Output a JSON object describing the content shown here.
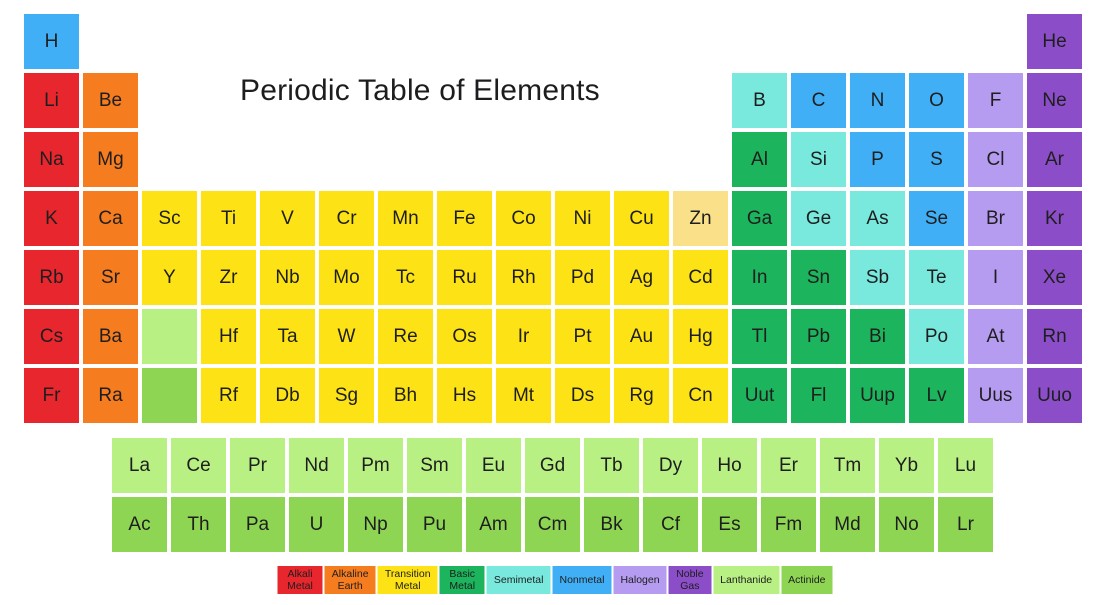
{
  "title": "Periodic Table of Elements",
  "categories": {
    "alkali": {
      "label": "Alkali Metal",
      "color": "#e8262d"
    },
    "alkaline": {
      "label": "Alkaline Earth",
      "color": "#f67c20"
    },
    "transition": {
      "label": "Transition Metal",
      "color": "#fde315"
    },
    "basic": {
      "label": "Basic Metal",
      "color": "#1cb45c"
    },
    "semimetal": {
      "label": "Semimetal",
      "color": "#79e9dd"
    },
    "nonmetal": {
      "label": "Nonmetal",
      "color": "#41aff5"
    },
    "halogen": {
      "label": "Halogen",
      "color": "#b59cf0"
    },
    "noble": {
      "label": "Noble Gas",
      "color": "#8b4ec8"
    },
    "lanthanide": {
      "label": "Lanthanide",
      "color": "#b9f083"
    },
    "actinide": {
      "label": "Actinide",
      "color": "#8ed554"
    }
  },
  "legend_order": [
    "alkali",
    "alkaline",
    "transition",
    "basic",
    "semimetal",
    "nonmetal",
    "halogen",
    "noble",
    "lanthanide",
    "actinide"
  ],
  "main_table": [
    {
      "symbol": "H",
      "row": 1,
      "col": 1,
      "cat": "nonmetal"
    },
    {
      "symbol": "He",
      "row": 1,
      "col": 18,
      "cat": "noble"
    },
    {
      "symbol": "Li",
      "row": 2,
      "col": 1,
      "cat": "alkali"
    },
    {
      "symbol": "Be",
      "row": 2,
      "col": 2,
      "cat": "alkaline"
    },
    {
      "symbol": "B",
      "row": 2,
      "col": 13,
      "cat": "semimetal"
    },
    {
      "symbol": "C",
      "row": 2,
      "col": 14,
      "cat": "nonmetal"
    },
    {
      "symbol": "N",
      "row": 2,
      "col": 15,
      "cat": "nonmetal"
    },
    {
      "symbol": "O",
      "row": 2,
      "col": 16,
      "cat": "nonmetal"
    },
    {
      "symbol": "F",
      "row": 2,
      "col": 17,
      "cat": "halogen"
    },
    {
      "symbol": "Ne",
      "row": 2,
      "col": 18,
      "cat": "noble"
    },
    {
      "symbol": "Na",
      "row": 3,
      "col": 1,
      "cat": "alkali"
    },
    {
      "symbol": "Mg",
      "row": 3,
      "col": 2,
      "cat": "alkaline"
    },
    {
      "symbol": "Al",
      "row": 3,
      "col": 13,
      "cat": "basic"
    },
    {
      "symbol": "Si",
      "row": 3,
      "col": 14,
      "cat": "semimetal"
    },
    {
      "symbol": "P",
      "row": 3,
      "col": 15,
      "cat": "nonmetal"
    },
    {
      "symbol": "S",
      "row": 3,
      "col": 16,
      "cat": "nonmetal"
    },
    {
      "symbol": "Cl",
      "row": 3,
      "col": 17,
      "cat": "halogen"
    },
    {
      "symbol": "Ar",
      "row": 3,
      "col": 18,
      "cat": "noble"
    },
    {
      "symbol": "K",
      "row": 4,
      "col": 1,
      "cat": "alkali"
    },
    {
      "symbol": "Ca",
      "row": 4,
      "col": 2,
      "cat": "alkaline"
    },
    {
      "symbol": "Sc",
      "row": 4,
      "col": 3,
      "cat": "transition"
    },
    {
      "symbol": "Ti",
      "row": 4,
      "col": 4,
      "cat": "transition"
    },
    {
      "symbol": "V",
      "row": 4,
      "col": 5,
      "cat": "transition"
    },
    {
      "symbol": "Cr",
      "row": 4,
      "col": 6,
      "cat": "transition"
    },
    {
      "symbol": "Mn",
      "row": 4,
      "col": 7,
      "cat": "transition"
    },
    {
      "symbol": "Fe",
      "row": 4,
      "col": 8,
      "cat": "transition"
    },
    {
      "symbol": "Co",
      "row": 4,
      "col": 9,
      "cat": "transition"
    },
    {
      "symbol": "Ni",
      "row": 4,
      "col": 10,
      "cat": "transition"
    },
    {
      "symbol": "Cu",
      "row": 4,
      "col": 11,
      "cat": "transition"
    },
    {
      "symbol": "Zn",
      "row": 4,
      "col": 12,
      "cat": "transition",
      "override": "#fbe08a"
    },
    {
      "symbol": "Ga",
      "row": 4,
      "col": 13,
      "cat": "basic"
    },
    {
      "symbol": "Ge",
      "row": 4,
      "col": 14,
      "cat": "semimetal"
    },
    {
      "symbol": "As",
      "row": 4,
      "col": 15,
      "cat": "semimetal"
    },
    {
      "symbol": "Se",
      "row": 4,
      "col": 16,
      "cat": "nonmetal"
    },
    {
      "symbol": "Br",
      "row": 4,
      "col": 17,
      "cat": "halogen"
    },
    {
      "symbol": "Kr",
      "row": 4,
      "col": 18,
      "cat": "noble"
    },
    {
      "symbol": "Rb",
      "row": 5,
      "col": 1,
      "cat": "alkali"
    },
    {
      "symbol": "Sr",
      "row": 5,
      "col": 2,
      "cat": "alkaline"
    },
    {
      "symbol": "Y",
      "row": 5,
      "col": 3,
      "cat": "transition"
    },
    {
      "symbol": "Zr",
      "row": 5,
      "col": 4,
      "cat": "transition"
    },
    {
      "symbol": "Nb",
      "row": 5,
      "col": 5,
      "cat": "transition"
    },
    {
      "symbol": "Mo",
      "row": 5,
      "col": 6,
      "cat": "transition"
    },
    {
      "symbol": "Tc",
      "row": 5,
      "col": 7,
      "cat": "transition"
    },
    {
      "symbol": "Ru",
      "row": 5,
      "col": 8,
      "cat": "transition"
    },
    {
      "symbol": "Rh",
      "row": 5,
      "col": 9,
      "cat": "transition"
    },
    {
      "symbol": "Pd",
      "row": 5,
      "col": 10,
      "cat": "transition"
    },
    {
      "symbol": "Ag",
      "row": 5,
      "col": 11,
      "cat": "transition"
    },
    {
      "symbol": "Cd",
      "row": 5,
      "col": 12,
      "cat": "transition"
    },
    {
      "symbol": "In",
      "row": 5,
      "col": 13,
      "cat": "basic"
    },
    {
      "symbol": "Sn",
      "row": 5,
      "col": 14,
      "cat": "basic"
    },
    {
      "symbol": "Sb",
      "row": 5,
      "col": 15,
      "cat": "semimetal"
    },
    {
      "symbol": "Te",
      "row": 5,
      "col": 16,
      "cat": "semimetal"
    },
    {
      "symbol": "I",
      "row": 5,
      "col": 17,
      "cat": "halogen"
    },
    {
      "symbol": "Xe",
      "row": 5,
      "col": 18,
      "cat": "noble"
    },
    {
      "symbol": "Cs",
      "row": 6,
      "col": 1,
      "cat": "alkali"
    },
    {
      "symbol": "Ba",
      "row": 6,
      "col": 2,
      "cat": "alkaline"
    },
    {
      "symbol": "Hf",
      "row": 6,
      "col": 4,
      "cat": "transition"
    },
    {
      "symbol": "Ta",
      "row": 6,
      "col": 5,
      "cat": "transition"
    },
    {
      "symbol": "W",
      "row": 6,
      "col": 6,
      "cat": "transition"
    },
    {
      "symbol": "Re",
      "row": 6,
      "col": 7,
      "cat": "transition"
    },
    {
      "symbol": "Os",
      "row": 6,
      "col": 8,
      "cat": "transition"
    },
    {
      "symbol": "Ir",
      "row": 6,
      "col": 9,
      "cat": "transition"
    },
    {
      "symbol": "Pt",
      "row": 6,
      "col": 10,
      "cat": "transition"
    },
    {
      "symbol": "Au",
      "row": 6,
      "col": 11,
      "cat": "transition"
    },
    {
      "symbol": "Hg",
      "row": 6,
      "col": 12,
      "cat": "transition"
    },
    {
      "symbol": "Tl",
      "row": 6,
      "col": 13,
      "cat": "basic"
    },
    {
      "symbol": "Pb",
      "row": 6,
      "col": 14,
      "cat": "basic"
    },
    {
      "symbol": "Bi",
      "row": 6,
      "col": 15,
      "cat": "basic"
    },
    {
      "symbol": "Po",
      "row": 6,
      "col": 16,
      "cat": "semimetal"
    },
    {
      "symbol": "At",
      "row": 6,
      "col": 17,
      "cat": "halogen"
    },
    {
      "symbol": "Rn",
      "row": 6,
      "col": 18,
      "cat": "noble"
    },
    {
      "symbol": "Fr",
      "row": 7,
      "col": 1,
      "cat": "alkali"
    },
    {
      "symbol": "Ra",
      "row": 7,
      "col": 2,
      "cat": "alkaline"
    },
    {
      "symbol": "Rf",
      "row": 7,
      "col": 4,
      "cat": "transition"
    },
    {
      "symbol": "Db",
      "row": 7,
      "col": 5,
      "cat": "transition"
    },
    {
      "symbol": "Sg",
      "row": 7,
      "col": 6,
      "cat": "transition"
    },
    {
      "symbol": "Bh",
      "row": 7,
      "col": 7,
      "cat": "transition"
    },
    {
      "symbol": "Hs",
      "row": 7,
      "col": 8,
      "cat": "transition"
    },
    {
      "symbol": "Mt",
      "row": 7,
      "col": 9,
      "cat": "transition"
    },
    {
      "symbol": "Ds",
      "row": 7,
      "col": 10,
      "cat": "transition"
    },
    {
      "symbol": "Rg",
      "row": 7,
      "col": 11,
      "cat": "transition"
    },
    {
      "symbol": "Cn",
      "row": 7,
      "col": 12,
      "cat": "transition"
    },
    {
      "symbol": "Uut",
      "row": 7,
      "col": 13,
      "cat": "basic"
    },
    {
      "symbol": "Fl",
      "row": 7,
      "col": 14,
      "cat": "basic"
    },
    {
      "symbol": "Uup",
      "row": 7,
      "col": 15,
      "cat": "basic"
    },
    {
      "symbol": "Lv",
      "row": 7,
      "col": 16,
      "cat": "basic"
    },
    {
      "symbol": "Uus",
      "row": 7,
      "col": 17,
      "cat": "halogen"
    },
    {
      "symbol": "Uuo",
      "row": 7,
      "col": 18,
      "cat": "noble"
    }
  ],
  "placeholders": [
    {
      "row": 6,
      "col": 3,
      "cat": "lanthanide"
    },
    {
      "row": 7,
      "col": 3,
      "cat": "actinide"
    }
  ],
  "lanthanides": [
    "La",
    "Ce",
    "Pr",
    "Nd",
    "Pm",
    "Sm",
    "Eu",
    "Gd",
    "Tb",
    "Dy",
    "Ho",
    "Er",
    "Tm",
    "Yb",
    "Lu"
  ],
  "actinides": [
    "Ac",
    "Th",
    "Pa",
    "U",
    "Np",
    "Pu",
    "Am",
    "Cm",
    "Bk",
    "Cf",
    "Es",
    "Fm",
    "Md",
    "No",
    "Lr"
  ]
}
